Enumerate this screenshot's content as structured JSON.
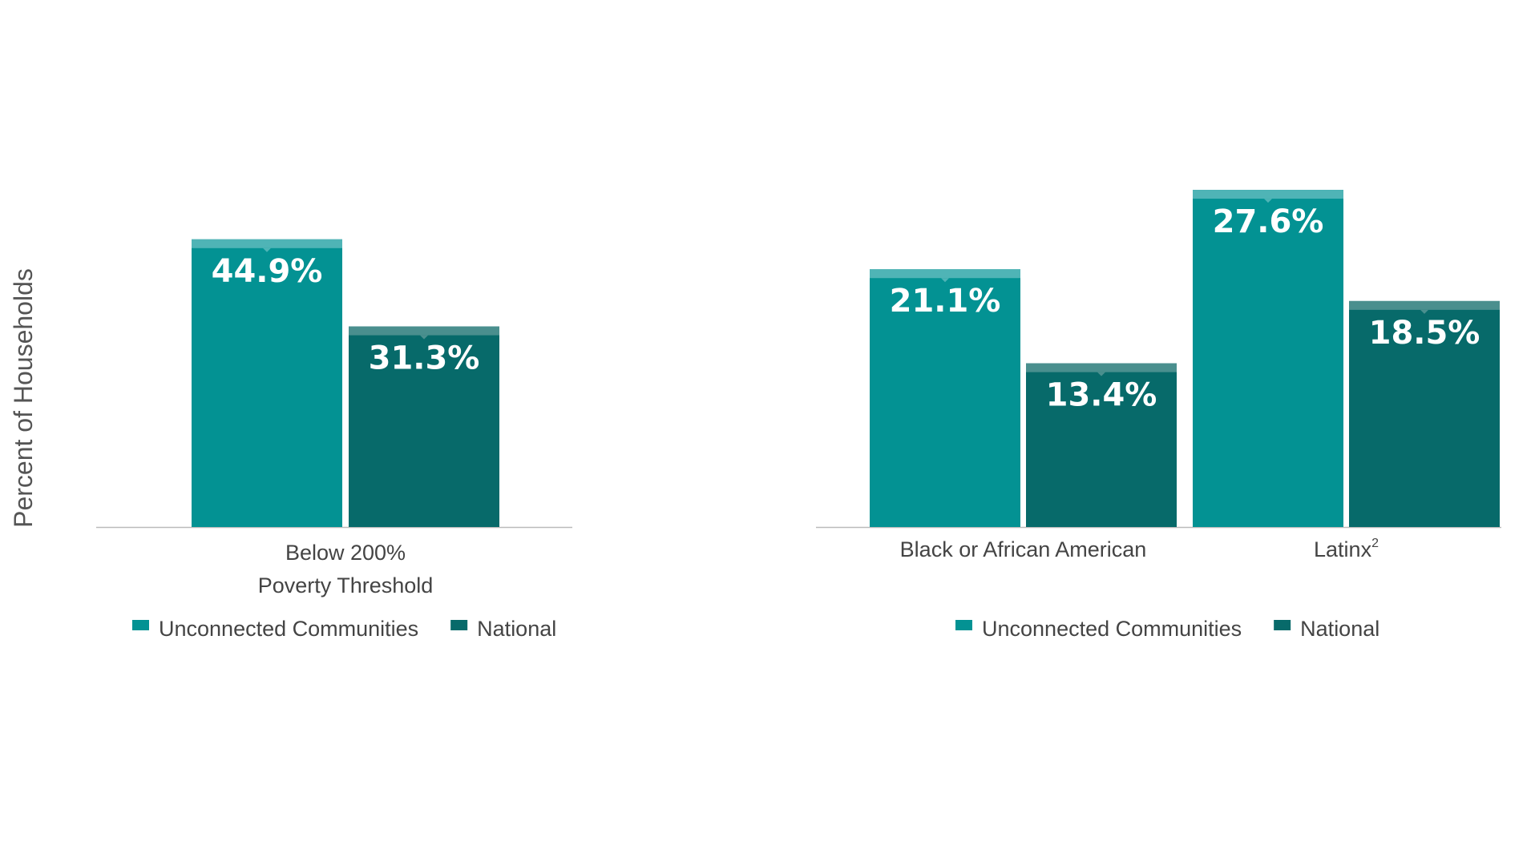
{
  "colors": {
    "unconnected": "#039293",
    "unconnected_cap": "#4fb4b6",
    "national": "#076a6a",
    "national_cap": "#4a8f8e",
    "axis": "#bbbbbb"
  },
  "chart_data": [
    {
      "type": "bar",
      "ylabel": "Percent of Households",
      "categories": [
        [
          "Below 200%",
          "Poverty Threshold"
        ]
      ],
      "series": [
        {
          "name": "Unconnected Communities",
          "values": [
            44.9
          ],
          "labels": [
            "44.9%"
          ]
        },
        {
          "name": "National",
          "values": [
            31.3
          ],
          "labels": [
            "31.3%"
          ]
        }
      ],
      "ylim": [
        0,
        60
      ],
      "legend": "bottom-center",
      "grid": false
    },
    {
      "type": "bar",
      "categories": [
        [
          "Black or African American"
        ],
        [
          "Latinx"
        ]
      ],
      "category_superscripts": [
        "",
        "2"
      ],
      "series": [
        {
          "name": "Unconnected Communities",
          "values": [
            21.1,
            27.6
          ],
          "labels": [
            "21.1%",
            "27.6%"
          ]
        },
        {
          "name": "National",
          "values": [
            13.4,
            18.5
          ],
          "labels": [
            "13.4%",
            "18.5%"
          ]
        }
      ],
      "ylim": [
        0,
        37
      ],
      "legend": "bottom-center",
      "grid": false
    }
  ]
}
